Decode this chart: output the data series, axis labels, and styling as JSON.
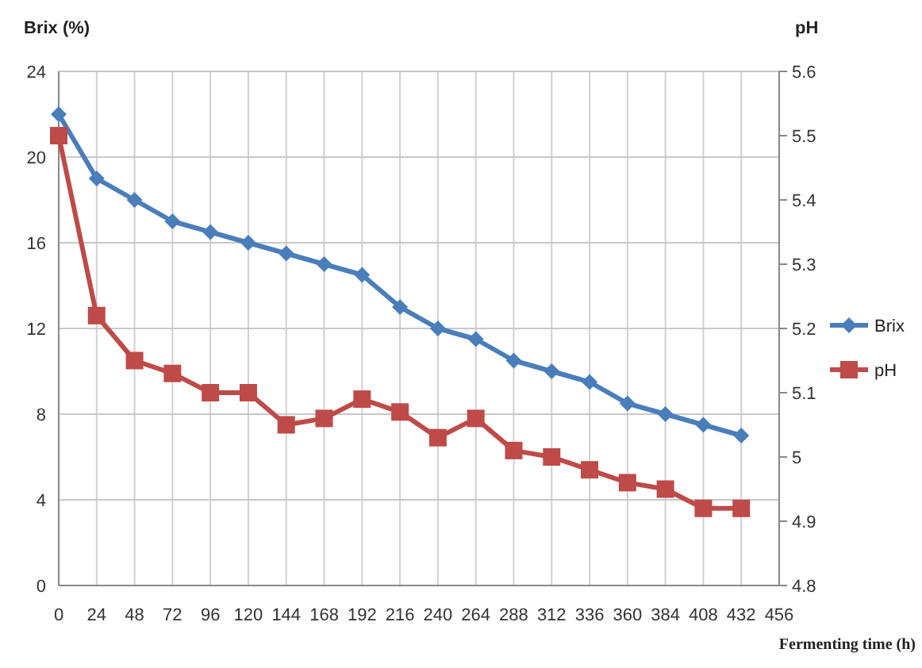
{
  "chart_data": {
    "type": "line",
    "xlabel": "Fermenting time (h)",
    "ylabel": "Brix (%)",
    "y2label": "pH",
    "x": [
      0,
      24,
      48,
      72,
      96,
      120,
      144,
      168,
      192,
      216,
      240,
      264,
      288,
      312,
      336,
      360,
      384,
      408,
      432
    ],
    "xlim": [
      0,
      456
    ],
    "xticks": [
      0,
      24,
      48,
      72,
      96,
      120,
      144,
      168,
      192,
      216,
      240,
      264,
      288,
      312,
      336,
      360,
      384,
      408,
      432,
      456
    ],
    "ylim": [
      0,
      24
    ],
    "yticks": [
      0,
      4,
      8,
      12,
      16,
      20,
      24
    ],
    "y2lim": [
      4.8,
      5.6
    ],
    "y2ticks": [
      4.8,
      4.9,
      5,
      5.1,
      5.2,
      5.3,
      5.4,
      5.5,
      5.6
    ],
    "grid": true,
    "legend": "right",
    "series": [
      {
        "name": "Brix",
        "color": "#4a7ebb",
        "marker": "diamond",
        "values": [
          22,
          19,
          18,
          17,
          16.5,
          16,
          15.5,
          15,
          14.5,
          13,
          12,
          11.5,
          10.5,
          10,
          9.5,
          8.5,
          8,
          7.5,
          7
        ]
      },
      {
        "name": "pH",
        "color": "#be4b48",
        "marker": "square",
        "axis": "y2",
        "values": [
          5.5,
          5.22,
          5.15,
          5.13,
          5.1,
          5.1,
          5.05,
          5.06,
          5.09,
          5.07,
          5.03,
          5.06,
          5.01,
          5,
          4.98,
          4.96,
          4.95,
          4.92,
          4.92
        ]
      }
    ]
  }
}
